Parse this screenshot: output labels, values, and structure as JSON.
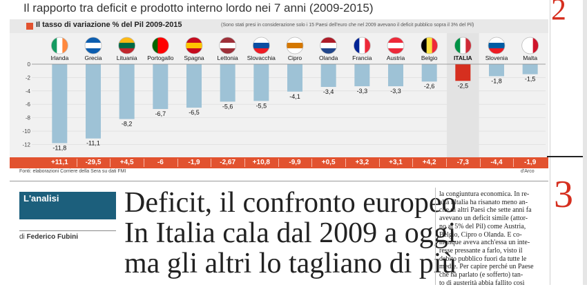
{
  "headline": "Il rapporto tra deficit e prodotto interno lordo nei 7 anni (2009-2015)",
  "chart_data": {
    "type": "bar",
    "title": "Il tasso di variazione % del Pil 2009-2015",
    "note": "(Sono stati presi in considerazione solo i 15 Paesi dell'euro che nel 2009 avevano il deficit pubblico sopra il 3% del Pil)",
    "categories": [
      "Irlanda",
      "Grecia",
      "Lituania",
      "Portogallo",
      "Spagna",
      "Lettonia",
      "Slovacchia",
      "Cipro",
      "Olanda",
      "Francia",
      "Austria",
      "Belgio",
      "ITALIA",
      "Slovenia",
      "Malta"
    ],
    "series": [
      {
        "values": [
          -11.8,
          -11.1,
          -8.2,
          -6.7,
          -6.5,
          -5.6,
          -5.5,
          -4.1,
          -3.4,
          -3.3,
          -3.3,
          -2.6,
          -2.5,
          -1.8,
          -1.5
        ]
      }
    ],
    "value_labels": [
      "-11,8",
      "-11,1",
      "-8,2",
      "-6,7",
      "-6,5",
      "-5,6",
      "-5,5",
      "-4,1",
      "-3,4",
      "-3,3",
      "-3,3",
      "-2,6",
      "-2,5",
      "-1,8",
      "-1,5"
    ],
    "pil_growth": [
      "+11,1",
      "-29,5",
      "+4,5",
      "-6",
      "-1,9",
      "-2,67",
      "+10,8",
      "-9,9",
      "+0,5",
      "+3,2",
      "+3,1",
      "+4,2",
      "-7,3",
      "-4,4",
      "-1,9"
    ],
    "yticks": [
      "0",
      "-2",
      "-4",
      "-6",
      "-8",
      "-10",
      "-12"
    ],
    "ylim": [
      -13.5,
      0
    ],
    "highlight_category": "ITALIA",
    "colors": {
      "bar": "#9ec2d6",
      "highlight": "#d62f1f",
      "growth_row": "#e2522f"
    },
    "source": "Fonti: elaborazioni Corriere della Sera su dati FMI",
    "credit": "d'Arco"
  },
  "flags": [
    "irlanda-flag-icon",
    "grecia-flag-icon",
    "lituania-flag-icon",
    "portogallo-flag-icon",
    "spagna-flag-icon",
    "lettonia-flag-icon",
    "slovacchia-flag-icon",
    "cipro-flag-icon",
    "olanda-flag-icon",
    "francia-flag-icon",
    "austria-flag-icon",
    "belgio-flag-icon",
    "italia-flag-icon",
    "slovenia-flag-icon",
    "malta-flag-icon"
  ],
  "article": {
    "section_label": "L'analisi",
    "byline_prefix": "di",
    "author": "Federico Fubini",
    "title_lines": [
      "Deficit, il confronto europeo",
      "In Italia cala dal 2009 a oggi",
      "ma gli altri lo tagliano di più"
    ],
    "body_lines": [
      "la congiuntura economica. In re-",
      "altà l'Italia ha risanato meno an-",
      "che di altri Paesi che sette anni fa",
      "avevano un deficit simile (attor-",
      "no al 5% del Pil) come Austria,",
      "Belgio, Cipro o Olanda. E co-",
      "munque aveva anch'essa un inte-",
      "resse pressante a farlo, visto il",
      "debito pubblico fuori da tutte le",
      "medie. Per capire perché un Paese",
      "che ha parlato (e sofferto) tan-",
      "to di austerità abbia fallito così"
    ]
  },
  "sidebar": {
    "number_top": "2",
    "number_bottom": "3"
  }
}
